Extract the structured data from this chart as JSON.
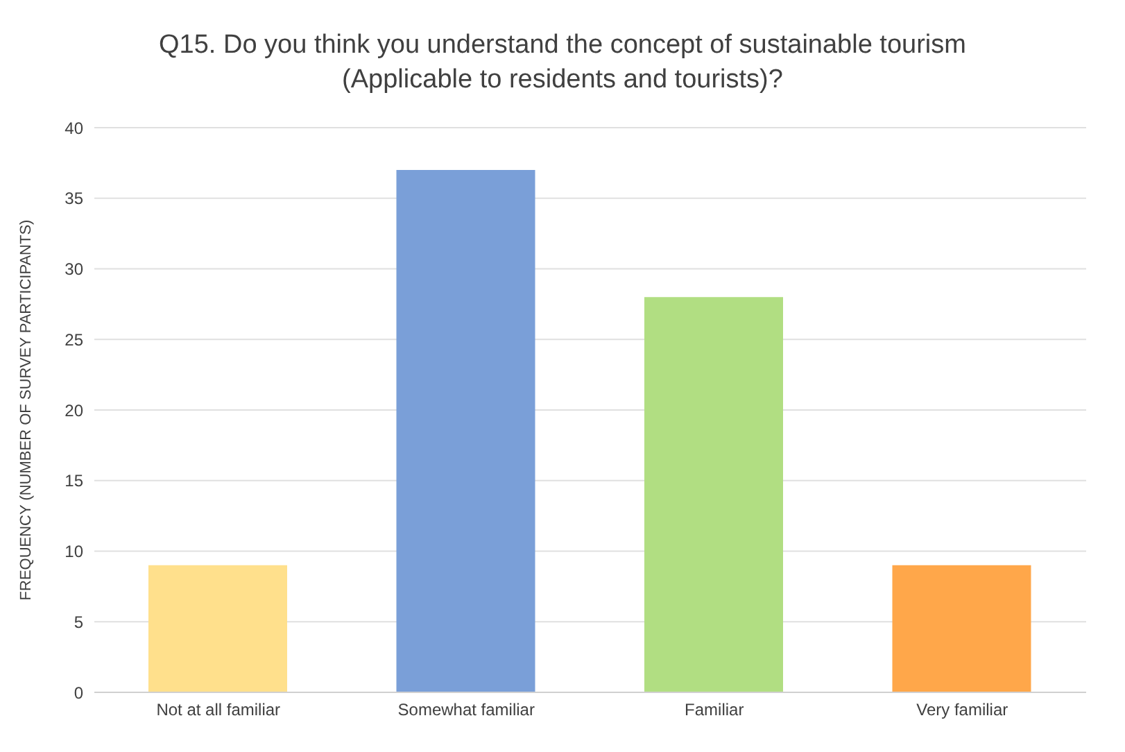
{
  "chart_data": {
    "type": "bar",
    "title": "Q15. Do you think you understand the concept of sustainable tourism\n(Applicable to residents and tourists)?",
    "ylabel": "FREQUENCY (NUMBER OF SURVEY PARTICIPANTS)",
    "categories": [
      "Not at all familiar",
      "Somewhat familiar",
      "Familiar",
      "Very familiar"
    ],
    "values": [
      9,
      37,
      28,
      9
    ],
    "colors": [
      "#ffe08c",
      "#7a9fd8",
      "#b1de82",
      "#ffa74a"
    ],
    "ylim": [
      0,
      40
    ],
    "yticks": [
      0,
      5,
      10,
      15,
      20,
      25,
      30,
      35,
      40
    ],
    "grid": "y"
  }
}
